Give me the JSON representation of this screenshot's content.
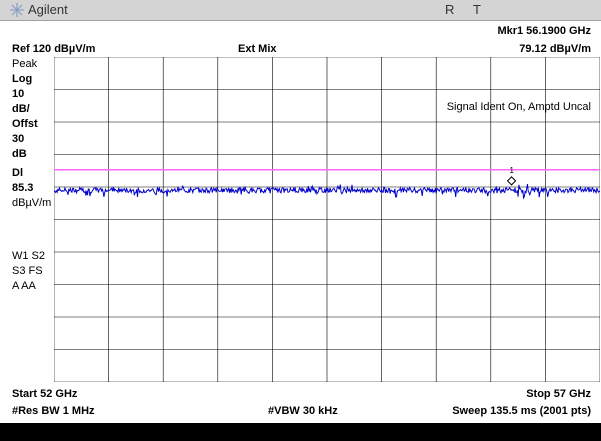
{
  "window": {
    "brand": "Agilent",
    "indicator_r": "R",
    "indicator_t": "T",
    "brand_icon": "agilent-spark-icon"
  },
  "header": {
    "marker_label": "Mkr1  56.1900 GHz",
    "marker_value": "79.12 dBµV/m",
    "ref_level": "Ref 120 dBµV/m",
    "mixer": "Ext Mix"
  },
  "sidebar": {
    "detector": "Peak",
    "scale_type": "Log",
    "scale_value": "10",
    "scale_unit": "dB/",
    "offset_label": "Offst",
    "offset_value": "30",
    "offset_unit": "dB",
    "display_line_label": "Dl",
    "display_line_value": "85.3",
    "display_line_unit": "dBµV/m",
    "trace_row1": "W1 S2",
    "trace_row2": "S3  FS",
    "trace_row3": "A   AA"
  },
  "annotation": "Signal Ident On, Amptd Uncal",
  "marker_number": "1",
  "footer": {
    "start": "Start 52 GHz",
    "stop": "Stop 57 GHz",
    "rbw": "#Res BW 1 MHz",
    "vbw": "#VBW 30 kHz",
    "sweep": "Sweep 135.5 ms (2001 pts)"
  },
  "colors": {
    "display_line": "#ff66ff",
    "trace": "#0000cc",
    "grid": "#000000"
  },
  "chart_data": {
    "type": "line",
    "x_range_ghz": [
      52,
      57
    ],
    "y_ref_dbuv_m": 120,
    "y_scale_db_per_div": 10,
    "divisions": 10,
    "display_line_dbuv_m": 85.3,
    "trace_level_dbuv_m": 79,
    "points": 2001,
    "marker": {
      "x_ghz": 56.19,
      "y_dbuv_m": 79.12
    }
  }
}
